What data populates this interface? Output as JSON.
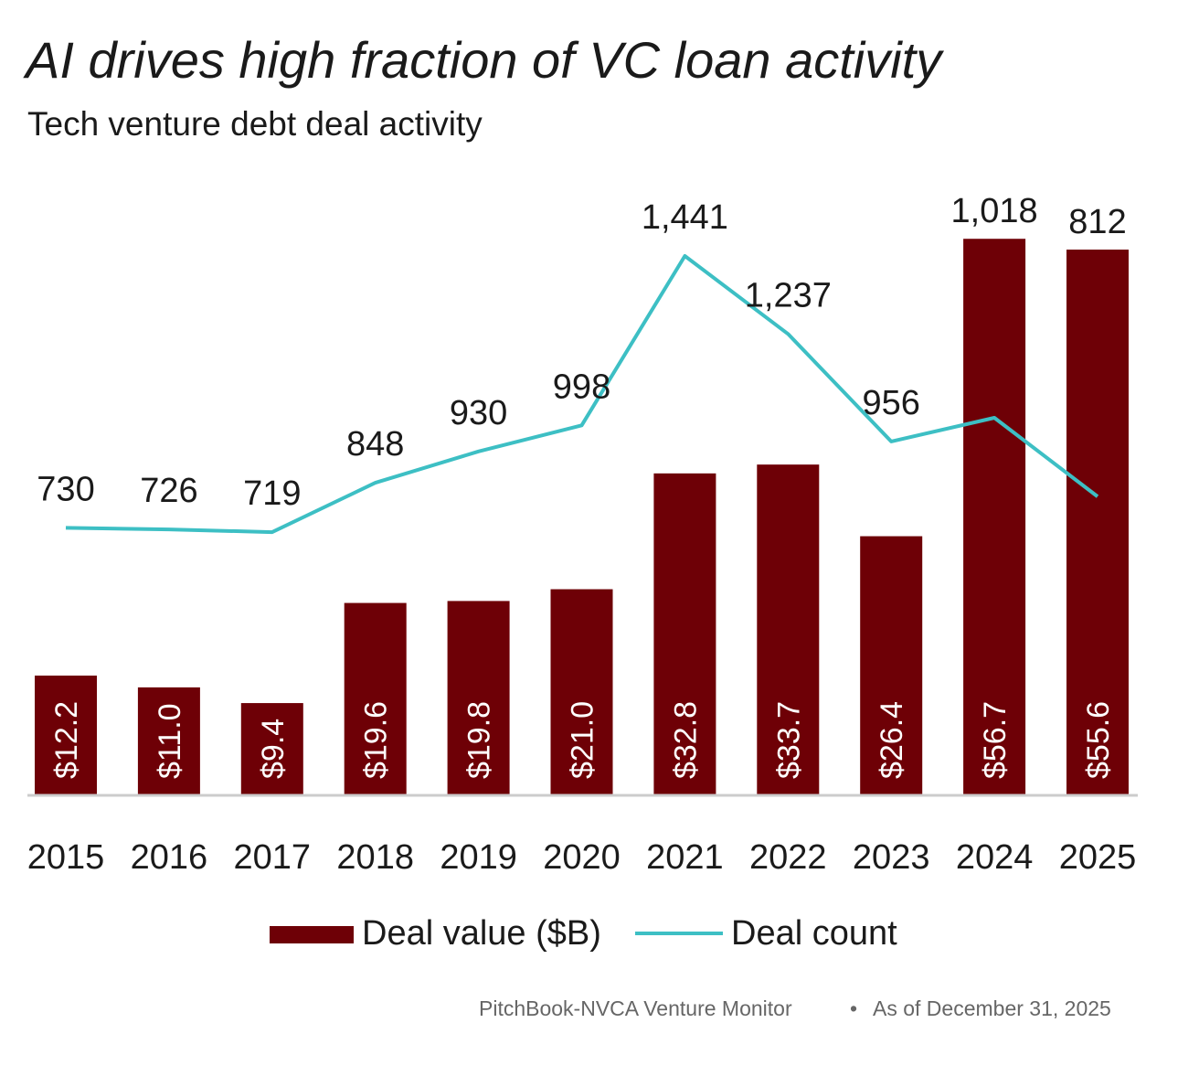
{
  "title": "AI drives high fraction of VC loan activity",
  "subtitle": "Tech venture debt deal activity",
  "source": "PitchBook-NVCA Venture Monitor",
  "source_separator": "•",
  "as_of": "As of December 31, 2025",
  "colors": {
    "bar": "#6e0006",
    "line": "#3dbfc4",
    "baseline": "#cccccc"
  },
  "chart_data": {
    "type": "bar",
    "categories": [
      "2015",
      "2016",
      "2017",
      "2018",
      "2019",
      "2020",
      "2021",
      "2022",
      "2023",
      "2024",
      "2025"
    ],
    "series": [
      {
        "name": "Deal value ($B)",
        "type": "bar",
        "values": [
          12.2,
          11.0,
          9.4,
          19.6,
          19.8,
          21.0,
          32.8,
          33.7,
          26.4,
          56.7,
          55.6
        ],
        "labels": [
          "$12.2",
          "$11.0",
          "$9.4",
          "$19.6",
          "$19.8",
          "$21.0",
          "$32.8",
          "$33.7",
          "$26.4",
          "$56.7",
          "$55.6"
        ]
      },
      {
        "name": "Deal count",
        "type": "line",
        "values": [
          730,
          726,
          719,
          848,
          930,
          998,
          1441,
          1237,
          956,
          1018,
          812
        ],
        "labels": [
          "730",
          "726",
          "719",
          "848",
          "930",
          "998",
          "1,441",
          "1,237",
          "956",
          "1,018",
          "812"
        ]
      }
    ],
    "xlabel": "",
    "ylabel": "",
    "legend": "bottom-center"
  }
}
